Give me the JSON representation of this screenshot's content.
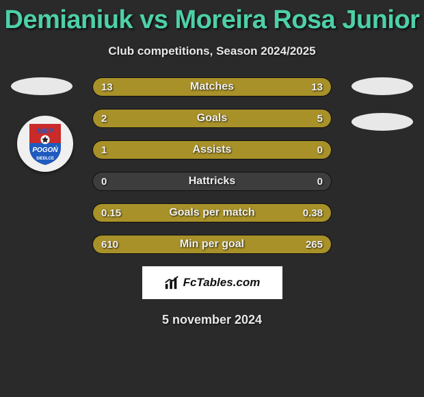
{
  "header": {
    "title": "Demianiuk vs Moreira Rosa Junior",
    "subtitle": "Club competitions, Season 2024/2025",
    "title_color": "#4dd0a8"
  },
  "stats": {
    "type": "comparison-bars",
    "bar_bg": "#3d3d3d",
    "fill_color": "#a89128",
    "text_color": "#f0f0f0",
    "rows": [
      {
        "label": "Matches",
        "left": "13",
        "right": "13",
        "left_pct": 50,
        "right_pct": 50
      },
      {
        "label": "Goals",
        "left": "2",
        "right": "5",
        "left_pct": 28,
        "right_pct": 72
      },
      {
        "label": "Assists",
        "left": "1",
        "right": "0",
        "left_pct": 100,
        "right_pct": 0
      },
      {
        "label": "Hattricks",
        "left": "0",
        "right": "0",
        "left_pct": 0,
        "right_pct": 0
      },
      {
        "label": "Goals per match",
        "left": "0.15",
        "right": "0.38",
        "left_pct": 28,
        "right_pct": 72
      },
      {
        "label": "Min per goal",
        "left": "610",
        "right": "265",
        "left_pct": 30,
        "right_pct": 70
      }
    ]
  },
  "sides": {
    "oval_color": "#e8e8e8",
    "left_badge": {
      "name": "MKP Pogon Siedlce",
      "top_text": "MKP",
      "mid_text": "POGOŃ",
      "bot_text": "SIEDLCE",
      "shield_top": "#c92a2a",
      "shield_bottom": "#1e5bbf"
    }
  },
  "brand": {
    "text": "FcTables.com"
  },
  "footer": {
    "date": "5 november 2024"
  },
  "colors": {
    "page_bg": "#2a2a2a"
  }
}
